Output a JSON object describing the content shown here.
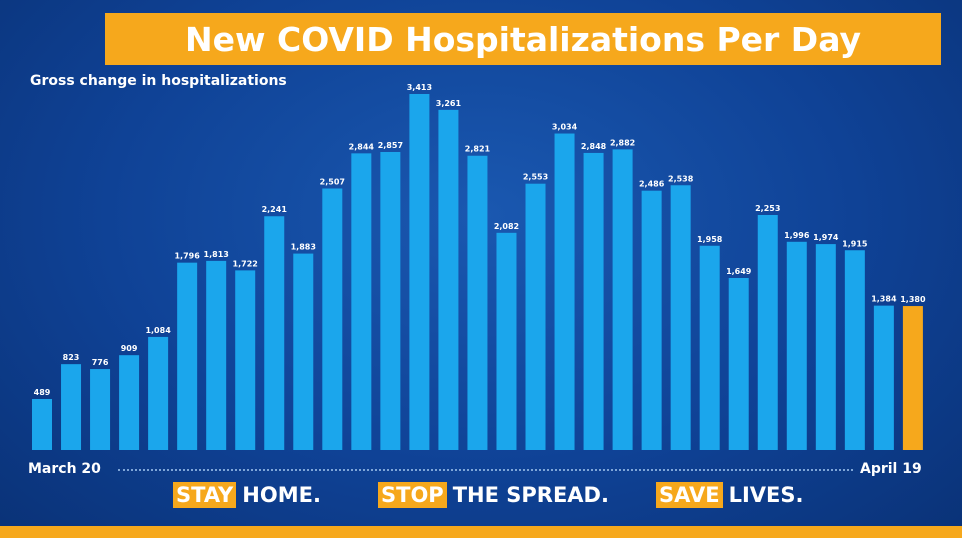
{
  "chart_data": {
    "type": "bar",
    "title": "New COVID Hospitalizations Per Day",
    "subtitle": "Gross change in hospitalizations",
    "xlabel": "",
    "ylabel": "",
    "x_start_label": "March 20",
    "x_end_label": "April 19",
    "values": [
      489,
      823,
      776,
      909,
      1084,
      1796,
      1813,
      1722,
      2241,
      1883,
      2507,
      2844,
      2857,
      3413,
      3261,
      2821,
      2082,
      2553,
      3034,
      2848,
      2882,
      2486,
      2538,
      1958,
      1649,
      2253,
      1996,
      1974,
      1915,
      1384,
      1380
    ],
    "highlight_index": 30,
    "ylim": [
      0,
      3413
    ],
    "grid": false,
    "colors": {
      "bar": "#1ba6ec",
      "highlight": "#f6a81c"
    }
  },
  "slogans": [
    {
      "highlight": "STAY",
      "rest": "HOME."
    },
    {
      "highlight": "STOP",
      "rest": "THE SPREAD."
    },
    {
      "highlight": "SAVE",
      "rest": "LIVES."
    }
  ]
}
